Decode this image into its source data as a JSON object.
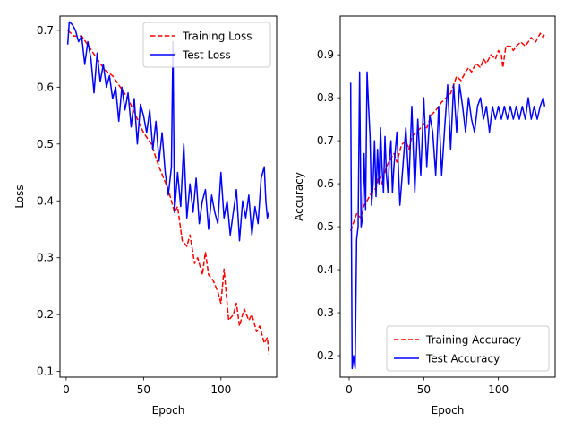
{
  "colors": {
    "train": "#ff0000",
    "test": "#0000ff",
    "frame": "#000000",
    "legend_frame": "#cccccc"
  },
  "chart_data": [
    {
      "type": "line",
      "title": "",
      "xlabel": "Epoch",
      "ylabel": "Loss",
      "xlim": [
        -4,
        136
      ],
      "ylim": [
        0.09,
        0.725
      ],
      "xticks": [
        0,
        50,
        100
      ],
      "xtick_labels": [
        "0",
        "50",
        "100"
      ],
      "yticks": [
        0.1,
        0.2,
        0.3,
        0.4,
        0.5,
        0.6,
        0.7
      ],
      "ytick_labels": [
        "0.1",
        "0.2",
        "0.3",
        "0.4",
        "0.5",
        "0.6",
        "0.7"
      ],
      "legend_position": "top-right",
      "series": [
        {
          "name": "Training Loss",
          "style": "dashed",
          "color": "#ff0000",
          "x": [
            1,
            5,
            10,
            15,
            20,
            25,
            30,
            35,
            40,
            45,
            50,
            55,
            60,
            63,
            66,
            70,
            72,
            75,
            78,
            80,
            83,
            85,
            88,
            90,
            92,
            95,
            98,
            100,
            102,
            105,
            108,
            110,
            112,
            115,
            118,
            120,
            123,
            125,
            128,
            130,
            131
          ],
          "y": [
            0.7,
            0.69,
            0.69,
            0.67,
            0.65,
            0.63,
            0.62,
            0.6,
            0.58,
            0.55,
            0.52,
            0.5,
            0.46,
            0.44,
            0.42,
            0.38,
            0.39,
            0.33,
            0.32,
            0.34,
            0.29,
            0.3,
            0.27,
            0.31,
            0.27,
            0.26,
            0.24,
            0.22,
            0.28,
            0.19,
            0.2,
            0.22,
            0.18,
            0.21,
            0.19,
            0.2,
            0.17,
            0.18,
            0.15,
            0.16,
            0.13
          ]
        },
        {
          "name": "Test Loss",
          "style": "solid",
          "color": "#0000ff",
          "x": [
            1,
            2,
            4,
            6,
            8,
            10,
            12,
            14,
            16,
            18,
            20,
            22,
            24,
            26,
            28,
            30,
            32,
            34,
            36,
            38,
            40,
            42,
            44,
            46,
            48,
            50,
            52,
            54,
            56,
            58,
            60,
            62,
            64,
            66,
            68,
            69,
            70,
            72,
            74,
            76,
            78,
            80,
            82,
            84,
            86,
            88,
            90,
            92,
            94,
            96,
            98,
            100,
            102,
            104,
            106,
            108,
            110,
            112,
            114,
            116,
            118,
            120,
            122,
            124,
            126,
            128,
            129,
            130,
            131
          ],
          "y": [
            0.675,
            0.715,
            0.71,
            0.7,
            0.68,
            0.69,
            0.64,
            0.68,
            0.65,
            0.59,
            0.66,
            0.61,
            0.64,
            0.6,
            0.62,
            0.58,
            0.6,
            0.54,
            0.6,
            0.56,
            0.59,
            0.53,
            0.58,
            0.5,
            0.57,
            0.55,
            0.52,
            0.56,
            0.49,
            0.54,
            0.47,
            0.52,
            0.45,
            0.41,
            0.46,
            0.68,
            0.38,
            0.45,
            0.39,
            0.5,
            0.37,
            0.43,
            0.38,
            0.44,
            0.36,
            0.4,
            0.42,
            0.35,
            0.41,
            0.38,
            0.36,
            0.45,
            0.37,
            0.4,
            0.34,
            0.38,
            0.42,
            0.33,
            0.4,
            0.37,
            0.41,
            0.34,
            0.39,
            0.36,
            0.44,
            0.46,
            0.4,
            0.37,
            0.38
          ]
        }
      ]
    },
    {
      "type": "line",
      "title": "",
      "xlabel": "Epoch",
      "ylabel": "Accuracy",
      "xlim": [
        -6,
        138
      ],
      "ylim": [
        0.15,
        0.99
      ],
      "xticks": [
        0,
        50,
        100
      ],
      "xtick_labels": [
        "0",
        "50",
        "100"
      ],
      "yticks": [
        0.2,
        0.3,
        0.4,
        0.5,
        0.6,
        0.7,
        0.8,
        0.9
      ],
      "ytick_labels": [
        "0.2",
        "0.3",
        "0.4",
        "0.5",
        "0.6",
        "0.7",
        "0.8",
        "0.9"
      ],
      "legend_position": "bottom-right",
      "series": [
        {
          "name": "Training Accuracy",
          "style": "dashed",
          "color": "#ff0000",
          "x": [
            1,
            3,
            5,
            8,
            10,
            12,
            15,
            18,
            20,
            22,
            25,
            28,
            30,
            32,
            35,
            38,
            40,
            42,
            45,
            48,
            50,
            52,
            55,
            58,
            60,
            62,
            65,
            68,
            70,
            72,
            75,
            78,
            80,
            82,
            85,
            88,
            90,
            92,
            95,
            98,
            100,
            102,
            103,
            105,
            108,
            110,
            112,
            115,
            118,
            120,
            122,
            125,
            128,
            130,
            131
          ],
          "y": [
            0.49,
            0.51,
            0.53,
            0.52,
            0.55,
            0.56,
            0.58,
            0.59,
            0.62,
            0.6,
            0.64,
            0.66,
            0.67,
            0.65,
            0.69,
            0.7,
            0.68,
            0.71,
            0.72,
            0.73,
            0.74,
            0.73,
            0.76,
            0.77,
            0.78,
            0.79,
            0.8,
            0.81,
            0.83,
            0.85,
            0.84,
            0.86,
            0.87,
            0.86,
            0.88,
            0.87,
            0.89,
            0.88,
            0.9,
            0.89,
            0.91,
            0.9,
            0.87,
            0.92,
            0.92,
            0.91,
            0.92,
            0.93,
            0.92,
            0.93,
            0.94,
            0.93,
            0.95,
            0.94,
            0.95
          ]
        },
        {
          "name": "Test Accuracy",
          "style": "solid",
          "color": "#0000ff",
          "x": [
            1,
            2,
            3,
            4,
            5,
            6,
            7,
            8,
            9,
            10,
            11,
            12,
            13,
            14,
            15,
            16,
            17,
            18,
            19,
            20,
            21,
            22,
            23,
            24,
            25,
            26,
            27,
            28,
            29,
            30,
            32,
            34,
            36,
            38,
            40,
            42,
            44,
            46,
            48,
            50,
            52,
            54,
            56,
            58,
            60,
            62,
            64,
            66,
            68,
            70,
            72,
            74,
            76,
            78,
            80,
            82,
            84,
            86,
            88,
            90,
            92,
            94,
            96,
            98,
            100,
            102,
            104,
            106,
            108,
            110,
            112,
            114,
            116,
            118,
            120,
            122,
            124,
            126,
            128,
            130,
            131
          ],
          "y": [
            0.835,
            0.17,
            0.2,
            0.17,
            0.47,
            0.5,
            0.86,
            0.5,
            0.52,
            0.67,
            0.54,
            0.86,
            0.78,
            0.71,
            0.55,
            0.6,
            0.7,
            0.57,
            0.68,
            0.6,
            0.73,
            0.64,
            0.58,
            0.71,
            0.62,
            0.58,
            0.66,
            0.7,
            0.58,
            0.64,
            0.72,
            0.55,
            0.64,
            0.73,
            0.6,
            0.78,
            0.58,
            0.75,
            0.62,
            0.8,
            0.64,
            0.76,
            0.72,
            0.62,
            0.78,
            0.62,
            0.73,
            0.83,
            0.68,
            0.83,
            0.72,
            0.83,
            0.78,
            0.72,
            0.8,
            0.75,
            0.72,
            0.78,
            0.8,
            0.75,
            0.78,
            0.72,
            0.78,
            0.75,
            0.78,
            0.75,
            0.78,
            0.75,
            0.78,
            0.75,
            0.78,
            0.75,
            0.78,
            0.75,
            0.8,
            0.75,
            0.78,
            0.75,
            0.78,
            0.8,
            0.78
          ]
        }
      ]
    }
  ]
}
